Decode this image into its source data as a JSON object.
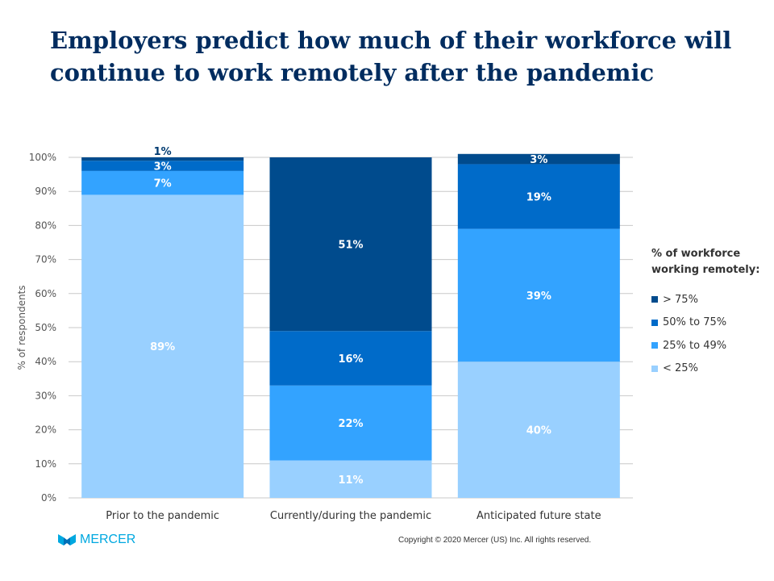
{
  "chart_data": {
    "type": "bar",
    "stacked": true,
    "title": "Employers predict how much of their workforce will continue to work remotely after the pandemic",
    "ylabel": "% of respondents",
    "xlabel": "",
    "ylim": [
      0,
      100
    ],
    "yticks": [
      "0%",
      "10%",
      "20%",
      "30%",
      "40%",
      "50%",
      "60%",
      "70%",
      "80%",
      "90%",
      "100%"
    ],
    "grid": true,
    "categories": [
      "Prior to the pandemic",
      "Currently/during the pandemic",
      "Anticipated future state"
    ],
    "legend_title": "% of workforce working remotely:",
    "legend_placement": "right",
    "series": [
      {
        "name": "< 25%",
        "color": "#99d0ff",
        "values": [
          89,
          11,
          40
        ]
      },
      {
        "name": "25% to 49%",
        "color": "#33a3ff",
        "values": [
          7,
          22,
          39
        ]
      },
      {
        "name": "50% to 75%",
        "color": "#006bc9",
        "values": [
          3,
          16,
          19
        ]
      },
      {
        "name": "> 75%",
        "color": "#004b8d",
        "values": [
          1,
          51,
          3
        ]
      }
    ]
  },
  "footer": {
    "logo": "MERCER",
    "copyright": "Copyright © 2020 Mercer (US) Inc. All rights reserved."
  }
}
